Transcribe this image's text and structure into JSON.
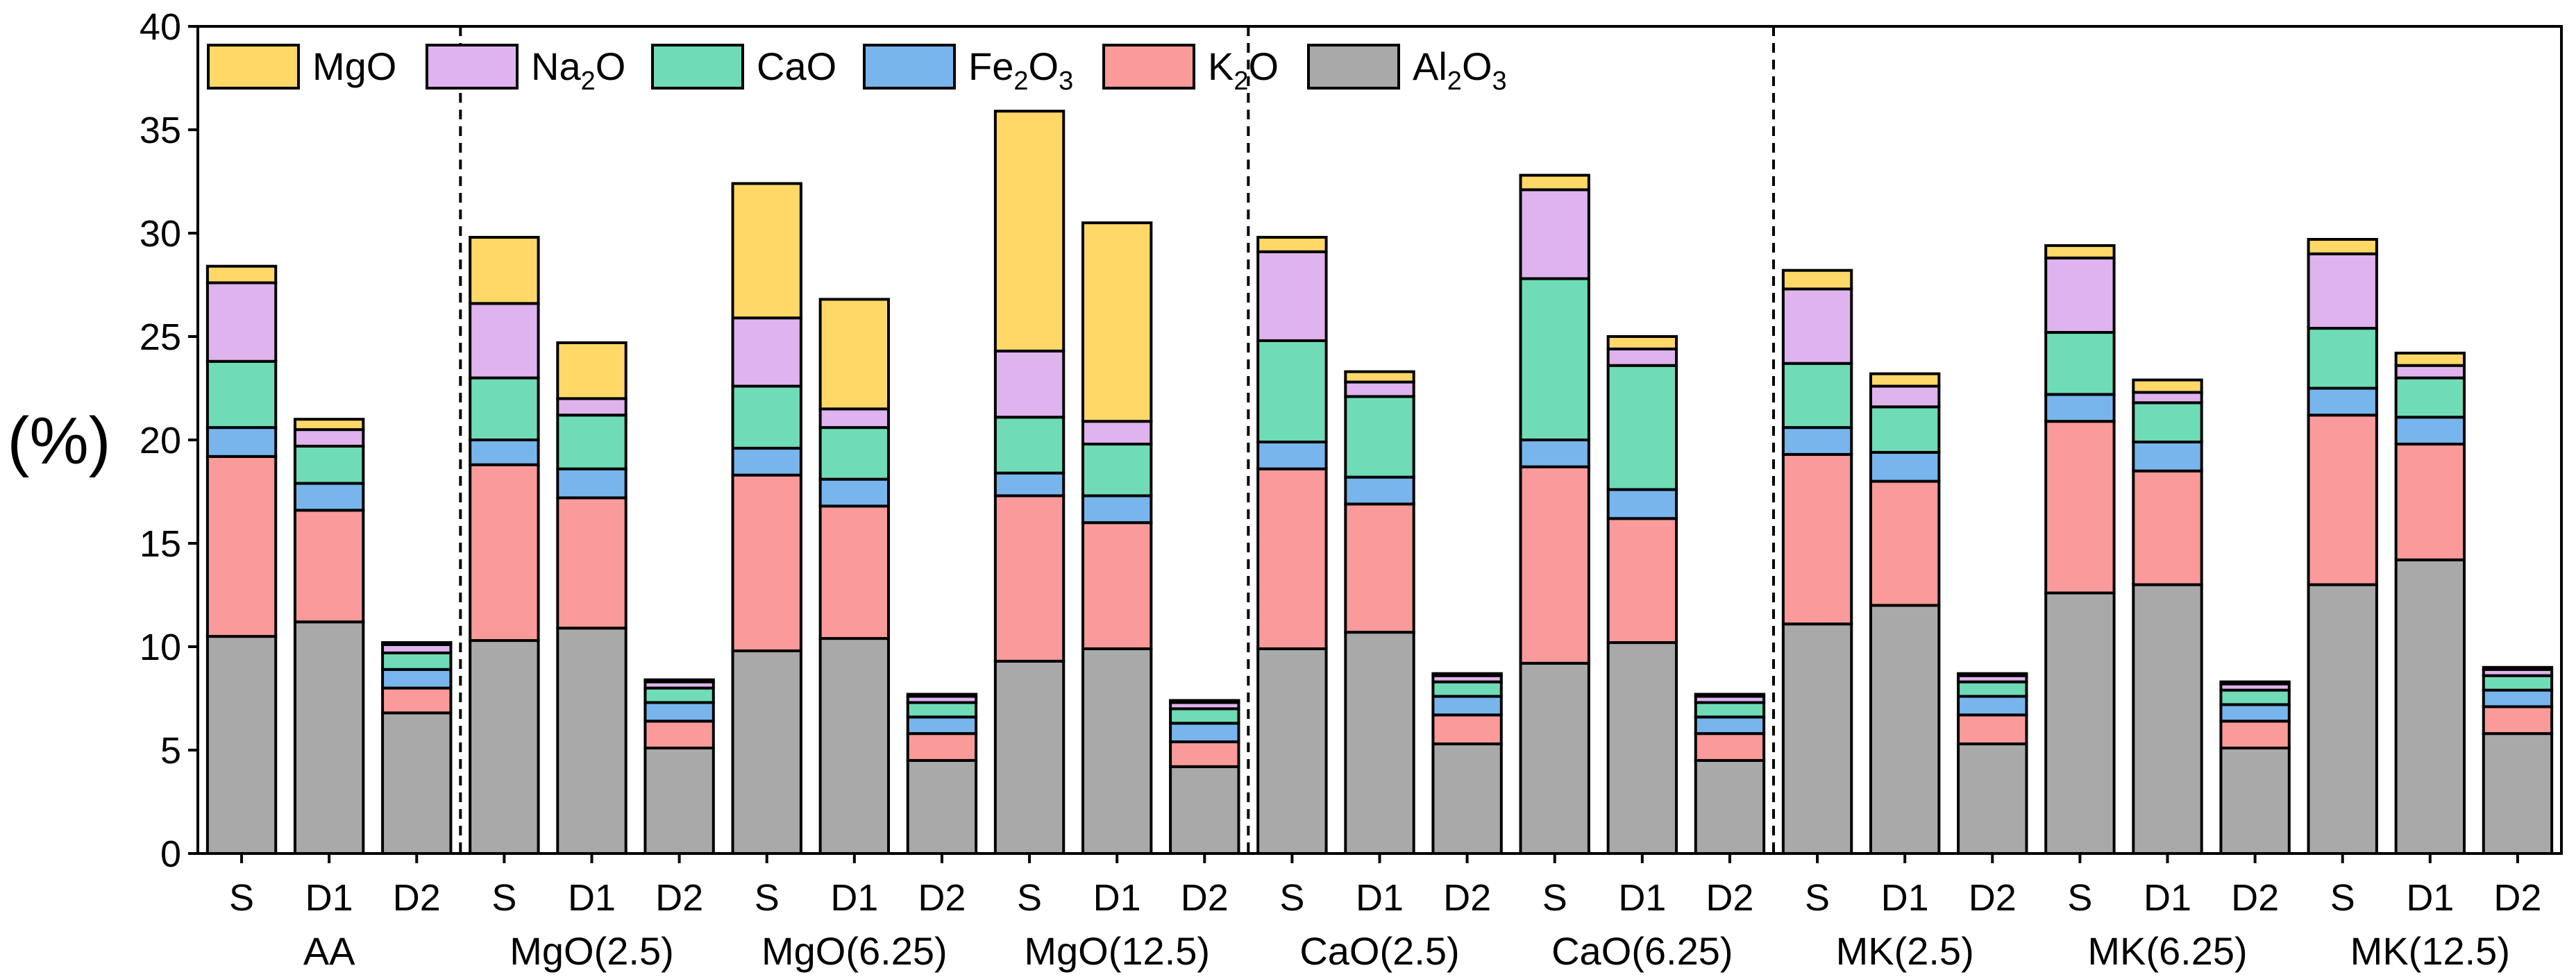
{
  "chart_data": {
    "type": "bar",
    "stacked": true,
    "title": "",
    "xlabel": "",
    "ylabel": "(%)",
    "ylim": [
      0,
      40
    ],
    "yticks": [
      0,
      5,
      10,
      15,
      20,
      25,
      30,
      35,
      40
    ],
    "grid": false,
    "legend_position": "top-left",
    "groups": [
      "AA",
      "MgO(2.5)",
      "MgO(6.25)",
      "MgO(12.5)",
      "CaO(2.5)",
      "CaO(6.25)",
      "MK(2.5)",
      "MK(6.25)",
      "MK(12.5)"
    ],
    "subcategories": [
      "S",
      "D1",
      "D2"
    ],
    "series": [
      {
        "name": "Al2O3",
        "label_base": "Al",
        "sub1": "2",
        "label_mid": "O",
        "sub2": "3",
        "color": "#a9a9a9",
        "values": [
          10.5,
          11.2,
          6.8,
          10.3,
          10.9,
          5.1,
          9.8,
          10.4,
          4.5,
          9.3,
          9.9,
          4.2,
          9.9,
          10.7,
          5.3,
          9.2,
          10.2,
          4.5,
          11.1,
          12.0,
          5.3,
          12.6,
          13.0,
          5.1,
          13.0,
          14.2,
          5.8
        ]
      },
      {
        "name": "K2O",
        "label_base": "K",
        "sub1": "2",
        "label_mid": "O",
        "sub2": "",
        "color": "#fa9a9a",
        "values": [
          8.7,
          5.4,
          1.2,
          8.5,
          6.3,
          1.3,
          8.5,
          6.4,
          1.3,
          8.0,
          6.1,
          1.2,
          8.7,
          6.2,
          1.4,
          9.5,
          6.0,
          1.3,
          8.2,
          6.0,
          1.4,
          8.3,
          5.5,
          1.3,
          8.2,
          5.6,
          1.3
        ]
      },
      {
        "name": "Fe2O3",
        "label_base": "Fe",
        "sub1": "2",
        "label_mid": "O",
        "sub2": "3",
        "color": "#78b5ed",
        "values": [
          1.4,
          1.3,
          0.9,
          1.2,
          1.4,
          0.9,
          1.3,
          1.3,
          0.8,
          1.1,
          1.3,
          0.9,
          1.3,
          1.3,
          0.9,
          1.3,
          1.4,
          0.8,
          1.3,
          1.4,
          0.9,
          1.3,
          1.4,
          0.8,
          1.3,
          1.3,
          0.8
        ]
      },
      {
        "name": "CaO",
        "label_base": "CaO",
        "sub1": "",
        "label_mid": "",
        "sub2": "",
        "color": "#6fdcb7",
        "values": [
          3.2,
          1.8,
          0.8,
          3.0,
          2.6,
          0.7,
          3.0,
          2.5,
          0.7,
          2.7,
          2.5,
          0.7,
          4.9,
          3.9,
          0.7,
          7.8,
          6.0,
          0.7,
          3.1,
          2.2,
          0.7,
          3.0,
          1.9,
          0.7,
          2.9,
          1.9,
          0.7
        ]
      },
      {
        "name": "Na2O",
        "label_base": "Na",
        "sub1": "2",
        "label_mid": "O",
        "sub2": "",
        "color": "#dfb3ee",
        "values": [
          3.8,
          0.8,
          0.4,
          3.6,
          0.8,
          0.3,
          3.3,
          0.9,
          0.3,
          3.2,
          1.1,
          0.3,
          4.3,
          0.7,
          0.3,
          4.3,
          0.8,
          0.3,
          3.6,
          1.0,
          0.3,
          3.6,
          0.5,
          0.3,
          3.6,
          0.6,
          0.3
        ]
      },
      {
        "name": "MgO",
        "label_base": "MgO",
        "sub1": "",
        "label_mid": "",
        "sub2": "",
        "color": "#ffd868",
        "values": [
          0.8,
          0.5,
          0.1,
          3.2,
          2.7,
          0.1,
          6.5,
          5.3,
          0.1,
          11.6,
          9.6,
          0.1,
          0.7,
          0.5,
          0.1,
          0.7,
          0.6,
          0.1,
          0.9,
          0.6,
          0.1,
          0.6,
          0.6,
          0.1,
          0.7,
          0.6,
          0.1
        ]
      }
    ],
    "legend_order": [
      "MgO",
      "Na2O",
      "CaO",
      "Fe2O3",
      "K2O",
      "Al2O3"
    ],
    "separators_after_group": [
      "AA",
      "MgO(12.5)",
      "CaO(6.25)"
    ]
  }
}
